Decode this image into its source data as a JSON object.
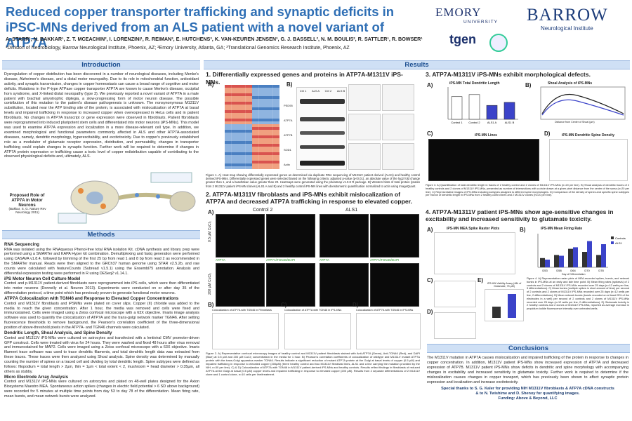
{
  "header": {
    "title": "Reduced copper transporter trafficking and synaptic deficits in iPSC-MNs derived from an ALS patient with a novel variant of ATP7A",
    "authors": "A. STARR¹, N. BAKKAR¹, Z. T. MCEACHIN², I. LORENZINI¹, R. REIMAN³, E. HUTCHENS³, K. VAN-KEUREN JENSEN³, G. J. BASSELL², N. M. BOULIS², R. SATTLER¹, R. BOWSER¹",
    "affiliations": "¹Division of Neurobiology, Barrow Neurological Institute, Phoenix, AZ; ²Emory University, Atlanta, GA; ³Translational Genomics Research Institute, Phoenix, AZ",
    "logo_emory": "EMORY",
    "logo_emory_sub": "UNIVERSITY",
    "logo_barrow": "BARROW",
    "logo_barrow_sub": "Neurological Institute",
    "logo_tgen": "tgen"
  },
  "sections": {
    "introduction": "Introduction",
    "results": "Results",
    "methods": "Methods",
    "conclusions": "Conclusions"
  },
  "intro": {
    "text": "Dysregulation of copper distribution has been discovered in a number of neurological diseases, including Menke's disease, Alzheimer's disease, and a distal motor neuropathy. Due to its role in mitochondrial function, antioxidant activity, and synaptic transmission, changes in copper homeostasis can cause a broad range of cognitive and motor deficits. Mutations in the P-type ATPase copper transporter ATP7A are known to cause Menke's disease, occipital horn syndrome, and X-linked distal neuropathy (type 3). We previously reported a novel variant of ATP7A in a male patient with brachial amyotrophic diplegia, a slow-progressing form of motor neuron disease. The possible contribution of this mutation to the patient's disease pathogenesis is unknown. The nonsynonymous M1311V substitution, located near the ATP binding site of the protein, is associated with mislocalization of ATP7A at basal levels and impaired trafficking in response to increased copper when overexpressed in HeLa cells and in patient fibroblasts. No changes in ATP7A transcript or gene expression were observed in fibroblasts. Patient fibroblasts were reprogrammed into induced pluripotent stem cells and differentiated into motor neurons (iPS-MNs). This model was used to examine ATP7A expression and localization in a more disease-relevant cell type. In addition, we examined morphological and functional parameters commonly affected in ALS and other ATP7A-associated diseases, namely, dendritic morphology, hyperexcitability, and excitotoxicity. Due to copper's previously established role as a modulator of glutamate receptor expression, distribution, and permeability, changes in transporter trafficking could explain changes in synaptic function. Further work will be required to determine if changes in ATP7A protein expression or trafficking cause a toxic level of copper redistribution capable of contributing to the observed physiological deficits and, ultimately, ALS.",
    "figure_title": "Proposed Role of ATP7A in Motor Neurons",
    "figure_cite": "(Bakkar, S. G. Nature Rev Neurology 2011)"
  },
  "methods": {
    "items": [
      {
        "h": "RNA Sequencing",
        "t": "RNA was isolated using the RNAqueous Phenol-free total RNA isolation Kit. cDNA synthesis and library prep were performed using a SMARTer and KAPA Hyper kit combination. Demultiplexing and fastq generation were performed using CASAVA v1.8.4, followed by trimming of the first 25 bp from read 1 and 8 bp from read 2 as recommended in the SMARTer manual. Reads were then aligned to the GRCh37 human genome using STAR v2.5.2b, and raw counts were calculated with featureCounts (Subread v1.5.1) using the Ensembl75 annotation. Analysis and differential expression testing were performed in R using DESeq2 v1.14.1."
      },
      {
        "h": "iPS Motor Neuron Cell Culture Model",
        "t": "Control and p.M1311V patient-derived fibroblasts were reprogrammed into iPS cells, which were then differentiated into motor neurons (Donnelly et al. Neuron 2013). Experiments were conducted on or after day 35 of the differentiation protocol, a time point which has previously proven to generate functional motor neurons."
      },
      {
        "h": "ATP7A Colocalization with TGN46 and Response to Elevated Copper Concentrations",
        "t": "Control and M1311V fibroblasts and iPSMNs were plated on cover slips. Copper (II) chloride was added to the media to reach the given concentration. After 1 hour, the media was removed and cells were fixed and immunostained. Cells were imaged using a Zeiss confocal microscope with a 63X objective. Imaris image analysis software was used to quantify the colocalization of ATP7A and the trans-golgi network marker TGN46. After setting fluorescence thresholds to remove background, the Pearson's correlation coefficient of the three-dimensional position of above-threshold pixels in the ATP7A- and TGN46 channels were calculated."
      },
      {
        "h": "Dendritic Length, Shoal Analysis, and Spine Density",
        "t": "Control and M1311V iPS-MNs were cultured on astrocytes and transfected with a lentiviral CMV promoter-driven GFP construct. Cells were treated with virus for 24 hours. They were washed and fixed 48 hours after virus removal and immunostained for MAP2. Cells were imaged using a Zeiss confocal microscope with a 63X objective. Imaris filament trace software was used to trace dendritic filaments, and total dendritic length data was extracted from these traces. These traces were then analyzed using Shoal analysis. Spine density was determined by manually counting the number of spines on a traced cell and dividing by total dendritic length. Spine subtypes were defined as follows: filopodium = total length > 2µm, thin = 1µm < total extent < 2, mushroom = head diameter > 0.35µm, all others as stubby."
      },
      {
        "h": "Micro Electrode Array Analysis",
        "t": "Control and M1311V iPS-MNs were cultured on astrocytes and plated on 48-well plates designed for the Axion Biosystems Maestro MEA. Spontaneous action spikes (changes in electric field potential > 6 SD above background) were recorded for 5 minutes at multiple time points from day 53 to day 78 of the differentiation. Mean firing rate, mean bursts, and mean network bursts were analyzed."
      }
    ]
  },
  "results": {
    "r1_title": "1. Differentially expressed genes and proteins in ATP7A-M1311V iPS-MNs.",
    "r1_caption": "Figure 1. A) Heat map showing differentially expressed genes as determined via duplicate RNA sequencing of M1311V patient derived (ALS1) and healthy control derived iPS-MNs. Differentially expressed genes were selected based on the following criteria: adjusted p-value (p<0.01), an absolute value of the log2 fold change greater than 1, and a baselMean value greater than 20. Heatmaps were generated using the pheatmap v1.0.8 R package. B) Western blots of total protein lysates from 2 M1311V patient iPS-MN clones (ALS1 A and B) and 2 healthy control iPS-MN lines with densitometric quantification normalized to actin using ImageQuant.",
    "r1_blot_cols": [
      "Ctrl 1",
      "ALS A",
      "Ctrl 2",
      "ALS B"
    ],
    "r1_blot_rows": [
      "PSD95",
      "ATP7A",
      "ATP7B",
      "SOD1",
      "Actin"
    ],
    "r2_title": "2. ATP7A-M1311V fibroblasts and iPS-MNs exhibit mislocalization of ATP7A and decreased ATP7A trafficking in response to elevated copper.",
    "r2_control": "Control 2",
    "r2_als": "ALS1",
    "r2_row1": "0.5 µM CuCl₂",
    "r2_row2": "200 µM CuCl₂",
    "r2_lbl_a": "ATP7A",
    "r2_lbl_b": "ATP7A/TGN46/DAPI",
    "r2_b_title": "Colocalization of ATP7A with TGN46 in Fibroblasts",
    "r2_c_title": "Colocalization of ATP7A with TGN46 in iPS-MNs",
    "r2_d_title": "Colocalization of ATP7A with TGN46 in iPS-MNs",
    "r2_caption": "Figure 2. A) Representative confocal microscopy images of healthy control and M1311V patient fibroblasts stained with Anti-ATP7A (Green), Anti-TGN46 (Red), and DAPI (Blue) at 0.5 µM and 200 µM CuCl₂ concentration in the media for 1 hour. B) Pearson's correlation coefficients of colocalization of wildtype and M1311V mutant ATP7A protein with the trans-Golgi apparatus marker TGN46. Results indicate a significant reduction of mutant ATP7A protein at the Golgi at basal levels of copper (0.5 µM) and impaired trafficking in response to elevated copper (200µM) (three healthy control and two M1311V fibroblast lines, ALS1 and a line carrying the mutation provided by the NIH, n=30 per line). C) & D) Colocalization of ATP7A with TGN46 in M1311V patient-derived iPS-MNs and healthy controls. Results reflect findings in fibroblasts of reduced ATP7A at the Golgi at basal (0.5 µM) copper levels and impaired trafficking in response to elevated copper (200 µM). Results from 2 separate differentiations of 2 M1311V clone and 1 control clone, n=10 cells per line/treatment.",
    "r2b_legend": [
      "0.5 uM CuCl2",
      "200 uM CuCl2"
    ],
    "r2b_xlabel": "Fibroblast Line",
    "r2c_xlabel": "iPS-MN Line",
    "r2_ylabel": "Pearson's Correlation Coefficient",
    "r3_title": "3. ATP7A-M1311V iPS-MNs exhibit morphological defects.",
    "r3_a_title": "iPS-MN Total Dendritic Length",
    "r3_a_ylabel": "Filament Length (µm)",
    "r3_b_title": "Shoal Analysis of iPS-MNs",
    "r3_b_xlabel": "Distance from Center of Shoal (µm)",
    "r3_b_ylabel": "# of Intersections",
    "r3_b_legend": [
      "Control 1",
      "Control 2",
      "ALS1 A",
      "ALS1 B"
    ],
    "r3_c_title": "iPS-MN Lines",
    "r3_c_cols": [
      "Control",
      "ALS1"
    ],
    "r3_d_title": "iPS-MN Dendritic Spine Density",
    "r3_d_legend": [
      "Control",
      "ALS1"
    ],
    "r3_d_xlabel": "Spine Subtype",
    "r3_d_ylabel": "Spines Per µm Dendritic Length",
    "r3_caption": "Figure 3. A) Quantification of total dendritic length in traces of 2 healthy control and 2 clones of M1311V iPS-MNs (n=20 per line). B) Shoal analysis of dendritic traces of 2 healthy controls and 2 clones of M1311V iPS-MNs, presented as number of intersections with a circle drawn at a given pixel distance from the center of the soma (n=20 per line). C) Representative images of iPS-MNs including subtypes assigned to different spine morphologies. D) Comparison of the density of spines and specific spine subtypes per micron of dendritic length in iPS-MNs from 2 healthy control lines and 2 M1311V clones (N=20 per line).",
    "r4_title": "4. ATP7A-M1311V patient iPS-MNs show age-sensitive changes in excitability and increased sensitivity to glutamate toxicity.",
    "r4_a_title": "iPS-MN MEA Spike Raster Plots",
    "r4_b_title": "iPS-MN Mean Firing Rate",
    "r4_b_xlabel": "Day of Differentiation",
    "r4_b_ylabel": "Mean Firing Rate (Hz)",
    "r4_b_legend": [
      "Controls",
      "ALS1"
    ],
    "r4_e_title": "iPS-MN Viability Assay (48h of Glutamate, 75 µM)",
    "r4_caption": "Figure 4. A) Representative raster plots of MEA-recorded spikes, bursts, and network bursts in iPS-MNs at an early and late time point. B) Mean firing rates (spikes/s) of 2 controls and 2 clones of M1311V iPS-MNs recorded over 25 days (n=12 wells per line, 3 differentiations). C) Mean bursts (multiple spikes in short amount of time) per second of 2 controls and 2 clones of M1311V iPS-MNs recorded over 25 days (n=12 wells per line, 2 differentiations). D) Mean network bursts (bursts recorded on at least 25% of the electrodes in a well) per second of 2 controls and 2 clones of M1311V iPS-MNs recorded over 25 days (n=12 wells per line, 2 differentiations). E) Glutamate toxicity in 2 healthy controls and 2 clones of M1311V iPS-MNs, reported as average increase in propidium iodide fluorescence intensity over untreated wells."
  },
  "panel_letters": [
    "A)",
    "B)",
    "C)",
    "D)",
    "E)"
  ],
  "conclusions": {
    "text": "The M1311V mutation in ATP7A causes mislocalization and impaired trafficking of the protein in response to changes in copper concentration. In addition, M1311V patient iPS-MNs show increased expression of ATP7A and decreased expression of ATP7B. M1311V patient iPS-MNs show deficits in dendritic and spine morphology with accompanying changes in excitability and increased sensitivity to glutamate toxicity. Further work is required to determine if the mislocalization causes changes in copper transport, which has previously been shown to affect synaptic protein expression and localization and increase excitotoxicity.",
    "thanks1": "Special thanks to S. G. Kaler for providing NIH M1311V fibroblasts & ATP7A cDNA constructs",
    "thanks2": "& to N. Twishime and D. Shenoy for quantifying images.",
    "funding": "Funding: Above & Beyond, LLC"
  },
  "chart_data": [
    {
      "type": "bar",
      "title": "iPS-MN Total Dendritic Length",
      "categories": [
        "Control 1",
        "Control 2",
        "ALS1 A",
        "ALS1 B"
      ],
      "values": [
        440,
        480,
        270,
        330
      ],
      "ylabel": "Filament Length (µm)",
      "ylim": [
        0,
        600
      ]
    },
    {
      "type": "bar",
      "title": "iPS-MN Mean Firing Rate",
      "categories": [
        "D53",
        "D58",
        "D64",
        "D70",
        "D78"
      ],
      "series": [
        {
          "name": "Controls",
          "values": [
            1.2,
            1.6,
            2.4,
            2.0,
            1.6
          ]
        },
        {
          "name": "ALS1",
          "values": [
            1.0,
            1.5,
            2.6,
            3.4,
            3.0
          ]
        }
      ]
    }
  ],
  "colors": {
    "title": "#2f6fb5",
    "section_bg": "#cfe0f5",
    "section_text": "#1d4f91",
    "blue_bar": "#3b43c9",
    "dark_bar": "#333333",
    "light_bar": "#ffffff"
  }
}
